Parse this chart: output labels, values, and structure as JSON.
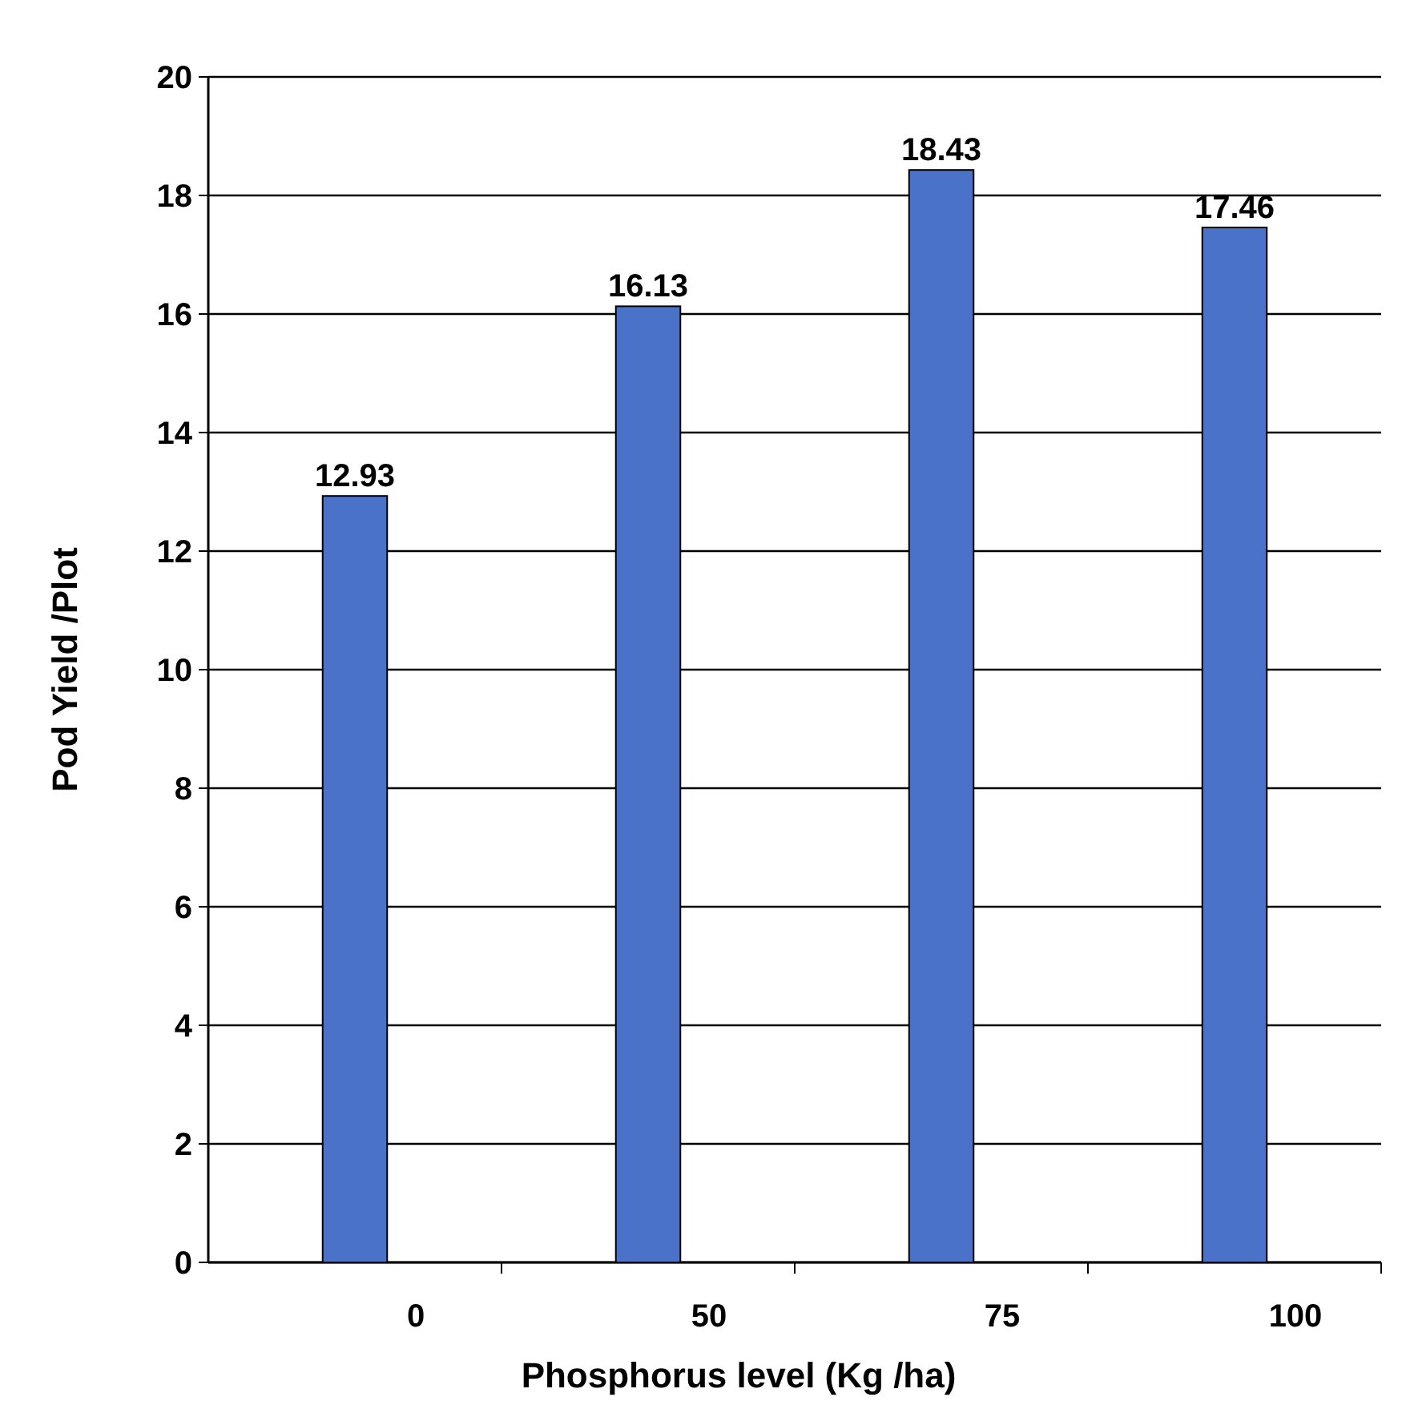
{
  "chart_data": {
    "type": "bar",
    "xlabel": "Phosphorus level (Kg /ha)",
    "ylabel": "Pod Yield /Plot",
    "categories": [
      "0",
      "50",
      "75",
      "100"
    ],
    "values": [
      12.93,
      16.13,
      18.43,
      17.46
    ],
    "color": "#4a72c8",
    "ylim": [
      0,
      20
    ],
    "yticks": [
      0,
      2,
      4,
      6,
      8,
      10,
      12,
      14,
      16,
      18,
      20
    ],
    "grid": "y",
    "data_labels": true
  }
}
